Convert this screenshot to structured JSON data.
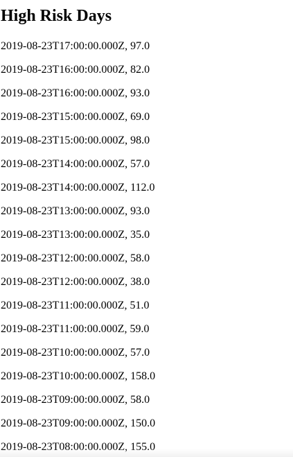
{
  "page": {
    "title": "High Risk Days"
  },
  "records": [
    "2019-08-23T17:00:00.000Z, 97.0",
    "2019-08-23T16:00:00.000Z, 82.0",
    "2019-08-23T16:00:00.000Z, 93.0",
    "2019-08-23T15:00:00.000Z, 69.0",
    "2019-08-23T15:00:00.000Z, 98.0",
    "2019-08-23T14:00:00.000Z, 57.0",
    "2019-08-23T14:00:00.000Z, 112.0",
    "2019-08-23T13:00:00.000Z, 93.0",
    "2019-08-23T13:00:00.000Z, 35.0",
    "2019-08-23T12:00:00.000Z, 58.0",
    "2019-08-23T12:00:00.000Z, 38.0",
    "2019-08-23T11:00:00.000Z, 51.0",
    "2019-08-23T11:00:00.000Z, 59.0",
    "2019-08-23T10:00:00.000Z, 57.0",
    "2019-08-23T10:00:00.000Z, 158.0",
    "2019-08-23T09:00:00.000Z, 58.0",
    "2019-08-23T09:00:00.000Z, 150.0",
    "2019-08-23T08:00:00.000Z, 155.0"
  ]
}
